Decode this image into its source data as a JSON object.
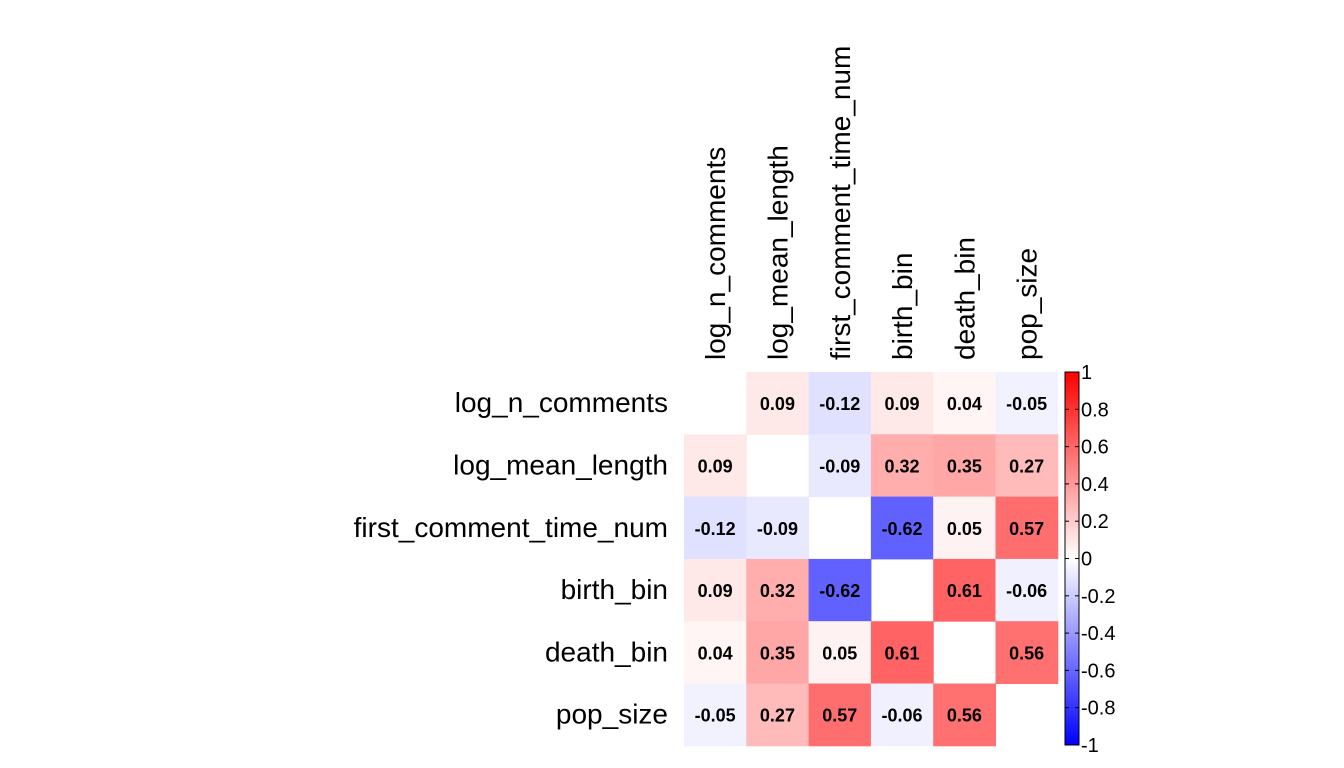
{
  "chart_data": {
    "type": "heatmap",
    "variables": [
      "log_n_comments",
      "log_mean_length",
      "first_comment_time_num",
      "birth_bin",
      "death_bin",
      "pop_size"
    ],
    "matrix": [
      [
        null,
        0.09,
        -0.12,
        0.09,
        0.04,
        -0.05
      ],
      [
        0.09,
        null,
        -0.09,
        0.32,
        0.35,
        0.27
      ],
      [
        -0.12,
        -0.09,
        null,
        -0.62,
        0.05,
        0.57
      ],
      [
        0.09,
        0.32,
        -0.62,
        null,
        0.61,
        -0.06
      ],
      [
        0.04,
        0.35,
        0.05,
        0.61,
        null,
        0.56
      ],
      [
        -0.05,
        0.27,
        0.57,
        -0.06,
        0.56,
        null
      ]
    ],
    "color_scale": {
      "min": -1,
      "max": 1,
      "low": "#0000ff",
      "mid": "#ffffff",
      "high": "#ff0000"
    },
    "colorbar_ticks": [
      "1",
      "0.8",
      "0.6",
      "0.4",
      "0.2",
      "0",
      "-0.2",
      "-0.4",
      "-0.6",
      "-0.8",
      "-1"
    ],
    "diagonal": "blank"
  }
}
